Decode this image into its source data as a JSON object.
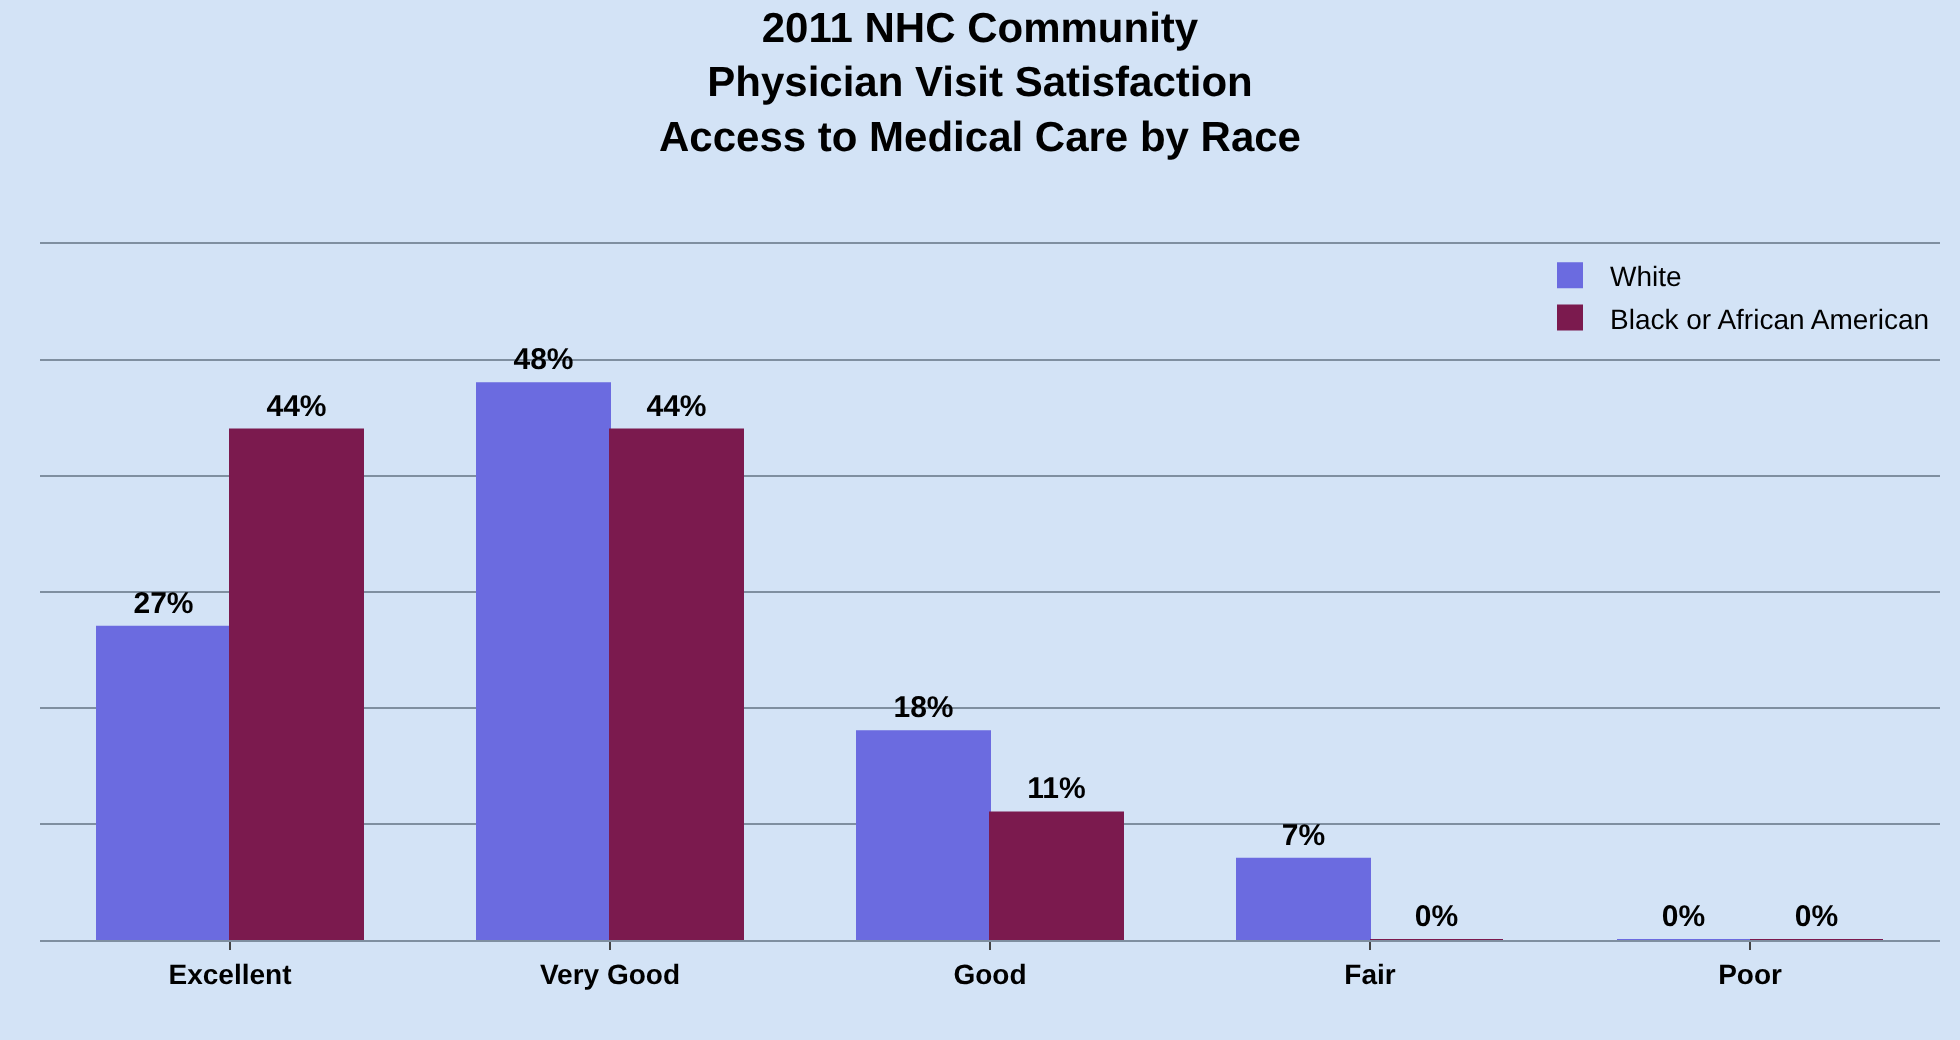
{
  "chart_data": {
    "type": "bar",
    "title": "2011 NHC Community\nPhysician Visit Satisfaction\nAccess to Medical Care by Race",
    "categories": [
      "Excellent",
      "Very Good",
      "Good",
      "Fair",
      "Poor"
    ],
    "series": [
      {
        "name": "White",
        "color": "#6b6be0",
        "values": [
          27,
          48,
          18,
          7,
          0
        ],
        "value_labels": [
          "27%",
          "48%",
          "18%",
          "7%",
          "0%"
        ]
      },
      {
        "name": "Black or African American",
        "color": "#7b1a4e",
        "values": [
          44,
          44,
          11,
          0,
          0
        ],
        "value_labels": [
          "44%",
          "44%",
          "11%",
          "0%",
          "0%"
        ]
      }
    ],
    "ylim": [
      0,
      60
    ],
    "yticks": [
      {
        "value": 0,
        "label": null
      },
      {
        "value": 10,
        "label": null
      },
      {
        "value": 20,
        "label": null
      },
      {
        "value": 30,
        "label": null
      },
      {
        "value": 40,
        "label": null
      },
      {
        "value": 50,
        "label": null
      },
      {
        "value": 60,
        "label": null
      }
    ],
    "tick_labels": "x",
    "grid": "y",
    "legend": "top right"
  }
}
